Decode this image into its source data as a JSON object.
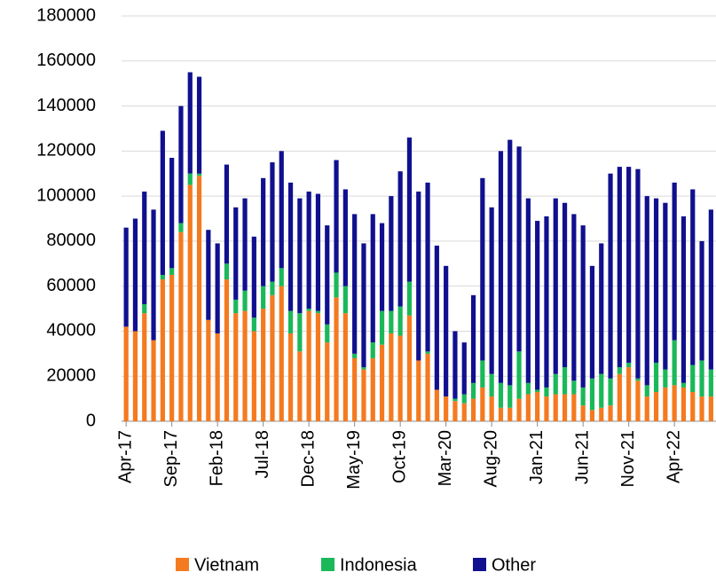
{
  "chart_data": {
    "type": "stacked_bar",
    "categories": [
      "Apr-17",
      null,
      null,
      null,
      null,
      "Sep-17",
      null,
      null,
      null,
      null,
      "Feb-18",
      null,
      null,
      null,
      null,
      "Jul-18",
      null,
      null,
      null,
      null,
      "Dec-18",
      null,
      null,
      null,
      null,
      "May-19",
      null,
      null,
      null,
      null,
      "Oct-19",
      null,
      null,
      null,
      null,
      "Mar-20",
      null,
      null,
      null,
      null,
      "Aug-20",
      null,
      null,
      null,
      null,
      "Jan-21",
      null,
      null,
      null,
      null,
      "Jun-21",
      null,
      null,
      null,
      null,
      "Nov-21",
      null,
      null,
      null,
      null,
      "Apr-22",
      null,
      null,
      null,
      null
    ],
    "series": [
      {
        "name": "Vietnam",
        "color": "#f47a20",
        "values": [
          42000,
          40000,
          48000,
          36000,
          63000,
          65000,
          84000,
          105000,
          109000,
          45000,
          39000,
          63000,
          48000,
          49000,
          40000,
          50000,
          56000,
          60000,
          39000,
          31000,
          49000,
          48000,
          35000,
          55000,
          48000,
          28000,
          23000,
          28000,
          34000,
          39000,
          38000,
          47000,
          27000,
          30000,
          14000,
          11000,
          9000,
          8000,
          10000,
          15000,
          11000,
          6000,
          6000,
          10000,
          12000,
          13000,
          11000,
          12000,
          12000,
          12000,
          7000,
          5000,
          6000,
          7000,
          21000,
          24000,
          18000,
          11000,
          13000,
          15000,
          16000,
          15000,
          13000,
          11000,
          11000
        ]
      },
      {
        "name": "Indonesia",
        "color": "#1bb85a",
        "values": [
          0,
          0,
          4000,
          0,
          2000,
          3000,
          4000,
          5000,
          1000,
          0,
          0,
          7000,
          6000,
          9000,
          6000,
          10000,
          6000,
          8000,
          10000,
          17000,
          1000,
          1000,
          8000,
          11000,
          12000,
          2000,
          1000,
          7000,
          15000,
          10000,
          13000,
          15000,
          0,
          1000,
          0,
          0,
          1000,
          4000,
          7000,
          12000,
          10000,
          11000,
          10000,
          21000,
          5000,
          1000,
          4000,
          9000,
          12000,
          6000,
          8000,
          14000,
          15000,
          12000,
          3000,
          2000,
          1000,
          5000,
          13000,
          8000,
          20000,
          2000,
          12000,
          16000,
          12000
        ]
      },
      {
        "name": "Other",
        "color": "#10108f",
        "values": [
          44000,
          50000,
          50000,
          58000,
          64000,
          49000,
          52000,
          45000,
          43000,
          40000,
          40000,
          44000,
          41000,
          41000,
          36000,
          48000,
          53000,
          52000,
          57000,
          51000,
          52000,
          52000,
          44000,
          50000,
          43000,
          62000,
          55000,
          57000,
          39000,
          51000,
          60000,
          64000,
          75000,
          75000,
          64000,
          58000,
          30000,
          23000,
          39000,
          81000,
          74000,
          103000,
          109000,
          91000,
          82000,
          75000,
          76000,
          78000,
          73000,
          74000,
          72000,
          50000,
          58000,
          91000,
          89000,
          87000,
          93000,
          84000,
          73000,
          74000,
          70000,
          74000,
          78000,
          53000,
          71000
        ]
      }
    ],
    "ylim": [
      0,
      180000
    ],
    "yticks": [
      0,
      20000,
      40000,
      60000,
      80000,
      100000,
      120000,
      140000,
      160000,
      180000
    ],
    "grid": true,
    "legend": "bottom"
  }
}
